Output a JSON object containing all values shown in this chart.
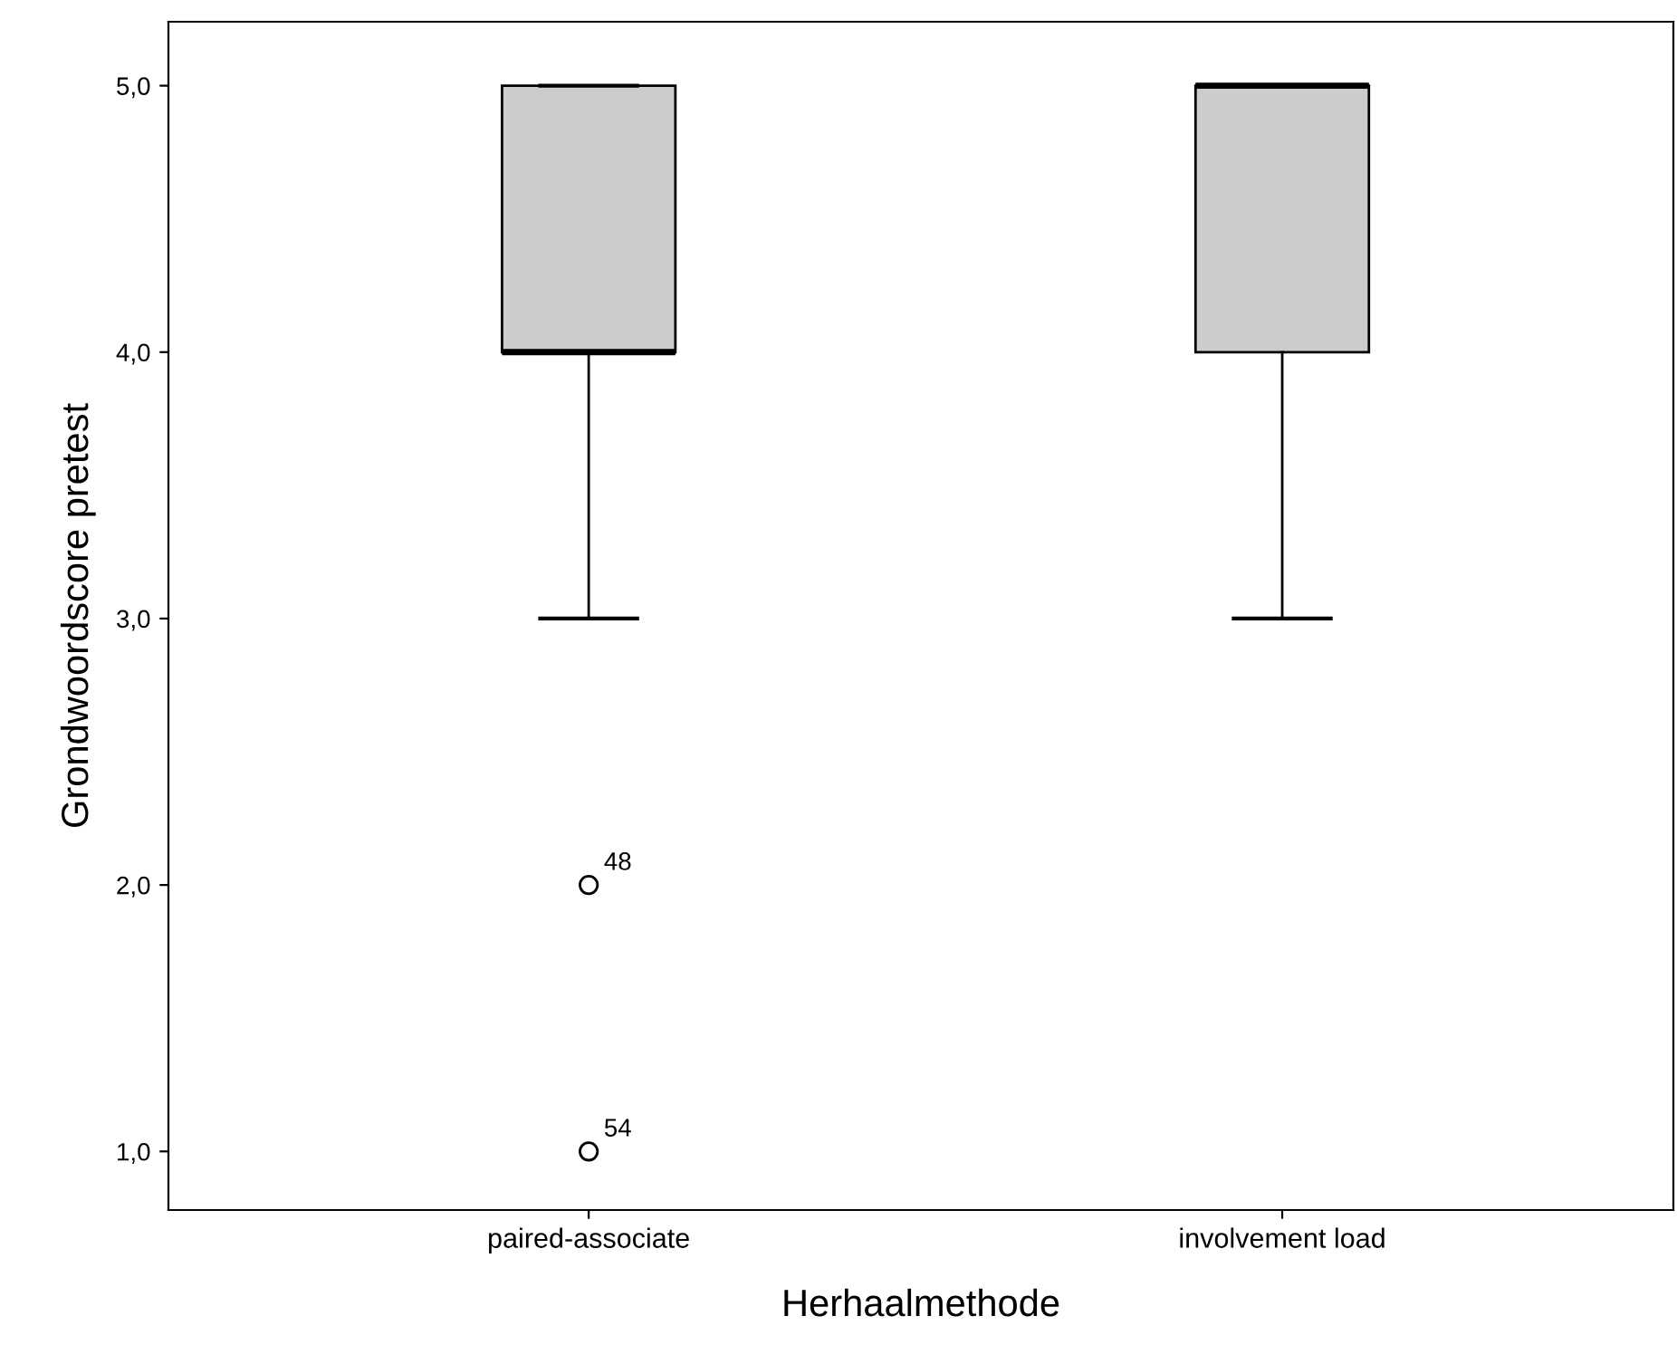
{
  "chart_data": {
    "type": "box",
    "xlabel": "Herhaalmethode",
    "ylabel": "Grondwoordscore pretest",
    "categories": [
      "paired-associate",
      "involvement load"
    ],
    "boxes": [
      {
        "low": 3,
        "q1": 4,
        "median": 4,
        "q3": 5,
        "high": 5,
        "outliers": [
          2,
          1
        ]
      },
      {
        "low": 3,
        "q1": 4,
        "median": 5,
        "q3": 5,
        "high": 5
      }
    ],
    "color": "#cccccc",
    "ylim": [
      0.78,
      5.24
    ],
    "yticks": [
      {
        "value": 1,
        "label": "1,0"
      },
      {
        "value": 2,
        "label": "2,0"
      },
      {
        "value": 3,
        "label": "3,0"
      },
      {
        "value": 4,
        "label": "4,0"
      },
      {
        "value": 5,
        "label": "5,0"
      }
    ],
    "annotations": [
      "48",
      "54"
    ],
    "grid": false
  }
}
